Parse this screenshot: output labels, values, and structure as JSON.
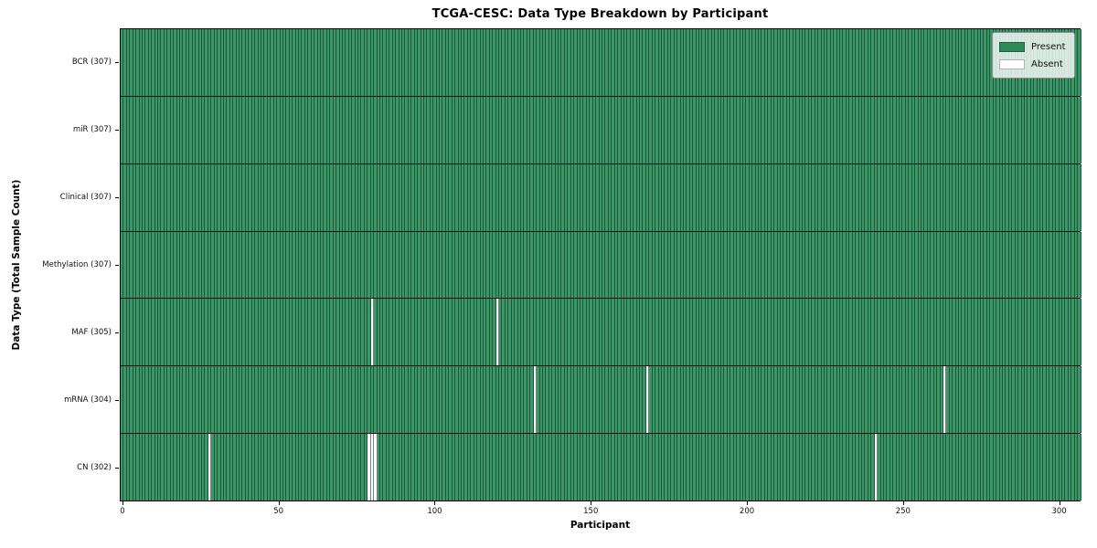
{
  "chart_data": {
    "type": "heatmap",
    "title": "TCGA-CESC: Data Type Breakdown by Participant",
    "xlabel": "Participant",
    "ylabel": "Data Type (Total Sample Count)",
    "n_participants": 307,
    "x_axis": {
      "ticks": [
        0,
        50,
        100,
        150,
        200,
        250,
        300
      ],
      "range": [
        0,
        307
      ]
    },
    "rows": [
      {
        "data_type": "BCR",
        "label": "BCR (307)",
        "total_samples": 307,
        "absent_participants": []
      },
      {
        "data_type": "miR",
        "label": "miR (307)",
        "total_samples": 307,
        "absent_participants": []
      },
      {
        "data_type": "Clinical",
        "label": "Clinical (307)",
        "total_samples": 307,
        "absent_participants": []
      },
      {
        "data_type": "Methylation",
        "label": "Methylation (307)",
        "total_samples": 307,
        "absent_participants": []
      },
      {
        "data_type": "MAF",
        "label": "MAF (305)",
        "total_samples": 305,
        "absent_participants": [
          80,
          120
        ]
      },
      {
        "data_type": "mRNA",
        "label": "mRNA (304)",
        "total_samples": 304,
        "absent_participants": [
          132,
          168,
          263
        ]
      },
      {
        "data_type": "CN",
        "label": "CN (302)",
        "total_samples": 302,
        "absent_participants": [
          28,
          79,
          80,
          81,
          241
        ]
      }
    ],
    "legend": {
      "position": "upper right",
      "entries": [
        {
          "label": "Present",
          "color": "#2e8b57"
        },
        {
          "label": "Absent",
          "color": "#ffffff"
        }
      ]
    },
    "colors": {
      "present": "#3b9768",
      "absent": "#ffffff",
      "cell_edge": "rgba(8,32,20,0.55)",
      "row_divider": "#141414",
      "plot_border": "#000000"
    }
  }
}
